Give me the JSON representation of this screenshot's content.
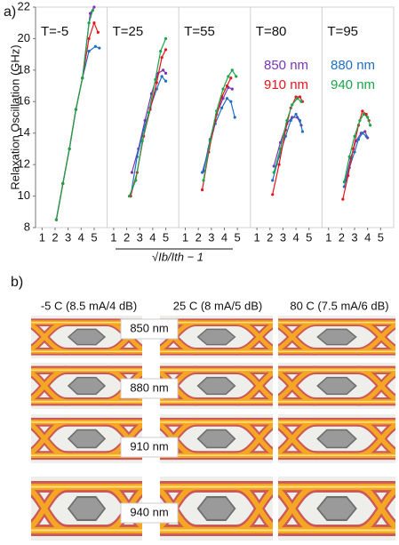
{
  "panel_labels": [
    "a)",
    "b)"
  ],
  "chart_data": {
    "type": "line",
    "ylabel": "Relaxation Oscillation (GHz)",
    "xlabel": "√Ib/Ith − 1",
    "ylim": [
      8,
      22
    ],
    "yticks": [
      8,
      10,
      12,
      14,
      16,
      18,
      20,
      22
    ],
    "xlim": [
      0.5,
      6
    ],
    "xticks": [
      1,
      2,
      3,
      4,
      5
    ],
    "series": [
      {
        "name": "850 nm",
        "color": "#7a35b0"
      },
      {
        "name": "880 nm",
        "color": "#1f6fc0"
      },
      {
        "name": "910 nm",
        "color": "#e8141c"
      },
      {
        "name": "940 nm",
        "color": "#1aa64a"
      }
    ],
    "panels": [
      {
        "title": "T=-5",
        "series": [
          {
            "x": [
              2.1,
              2.6,
              3.1,
              3.6,
              4.1,
              4.7,
              5.0
            ],
            "values": [
              8.5,
              10.8,
              13,
              15.5,
              17.5,
              21.6,
              22
            ]
          },
          {
            "x": [
              2.1,
              2.6,
              3.1,
              3.6,
              4.1,
              4.6,
              5.1,
              5.4
            ],
            "values": [
              8.5,
              10.8,
              13,
              15.5,
              17.5,
              19.2,
              19.5,
              19.4
            ]
          },
          {
            "x": [
              2.1,
              2.6,
              3.1,
              3.6,
              4.1,
              4.6,
              5.0,
              5.3
            ],
            "values": [
              8.5,
              10.8,
              13,
              15.5,
              17.5,
              20,
              21,
              20.4
            ]
          },
          {
            "x": [
              2.1,
              2.6,
              3.1,
              3.6,
              4.1,
              4.6,
              4.9
            ],
            "values": [
              8.5,
              10.8,
              13,
              15.5,
              17.5,
              21,
              21.8
            ]
          }
        ]
      },
      {
        "title": "T=25",
        "series": [
          {
            "x": [
              2.4,
              2.9,
              3.4,
              3.9,
              4.4,
              4.8,
              5.0
            ],
            "values": [
              11.5,
              13,
              14.8,
              16.5,
              17.8,
              18,
              17.8
            ]
          },
          {
            "x": [
              2.3,
              2.8,
              3.3,
              3.8,
              4.3,
              4.7,
              5.0
            ],
            "values": [
              10,
              12.5,
              14.2,
              15.6,
              16.8,
              17.6,
              17.3
            ]
          },
          {
            "x": [
              2.3,
              2.8,
              3.3,
              3.8,
              4.3,
              4.7,
              5.0
            ],
            "values": [
              10,
              11.5,
              13.8,
              15.5,
              17.2,
              18.8,
              19.3
            ]
          },
          {
            "x": [
              2.2,
              2.7,
              3.2,
              3.7,
              4.2,
              4.6,
              5.0
            ],
            "values": [
              10,
              11,
              13.5,
              15.3,
              17.4,
              19.2,
              20
            ]
          }
        ]
      },
      {
        "title": "T=55",
        "series": [
          {
            "x": [
              2.4,
              2.9,
              3.4,
              3.9,
              4.3,
              4.6
            ],
            "values": [
              11.6,
              13.6,
              15.2,
              16.2,
              16.9,
              16.8
            ]
          },
          {
            "x": [
              2.3,
              2.8,
              3.3,
              3.8,
              4.2,
              4.5,
              4.8
            ],
            "values": [
              11.5,
              13,
              14.6,
              15.6,
              16.2,
              16,
              15
            ]
          },
          {
            "x": [
              2.3,
              2.8,
              3.3,
              3.8,
              4.2,
              4.5
            ],
            "values": [
              10.4,
              12.8,
              14.8,
              16.3,
              17,
              17.5
            ]
          },
          {
            "x": [
              2.4,
              2.9,
              3.4,
              3.9,
              4.3,
              4.6,
              4.9
            ],
            "values": [
              11,
              13.5,
              15.4,
              16.8,
              17.6,
              18,
              17.6
            ]
          }
        ]
      },
      {
        "title": "T=80",
        "series": [
          {
            "x": [
              2.3,
              2.8,
              3.3,
              3.7,
              4.1,
              4.4
            ],
            "values": [
              11.9,
              13.4,
              14.6,
              15,
              15,
              14.5
            ]
          },
          {
            "x": [
              2.2,
              2.7,
              3.2,
              3.6,
              4.0,
              4.3,
              4.5
            ],
            "values": [
              11,
              12.5,
              13.8,
              14.8,
              15.2,
              14.8,
              14.1
            ]
          },
          {
            "x": [
              2.2,
              2.7,
              3.2,
              3.6,
              4.0,
              4.3,
              4.5
            ],
            "values": [
              10.1,
              12,
              14.2,
              15.6,
              16.3,
              16.3,
              16
            ]
          },
          {
            "x": [
              2.3,
              2.8,
              3.3,
              3.7,
              4.1,
              4.4
            ],
            "values": [
              11.5,
              13,
              14.8,
              15.8,
              16.2,
              16
            ]
          }
        ]
      },
      {
        "title": "T=95",
        "series": [
          {
            "x": [
              2.3,
              2.7,
              3.1,
              3.5,
              3.8,
              4.0
            ],
            "values": [
              11,
              12.4,
              13.5,
              14,
              14.1,
              13.7
            ]
          },
          {
            "x": [
              2.2,
              2.6,
              3.0,
              3.3,
              3.6,
              3.9
            ],
            "values": [
              10.6,
              11.8,
              12.8,
              13.6,
              14,
              13.8
            ]
          },
          {
            "x": [
              2.1,
              2.5,
              2.9,
              3.3,
              3.6,
              3.9,
              4.1
            ],
            "values": [
              9.8,
              11.3,
              13,
              14.5,
              15.4,
              15.2,
              14.8
            ]
          },
          {
            "x": [
              2.2,
              2.6,
              3.0,
              3.4,
              3.7,
              4.0,
              4.2
            ],
            "values": [
              10.9,
              12.5,
              13.8,
              14.8,
              15.2,
              15,
              14.5
            ]
          }
        ]
      }
    ]
  },
  "eye_diagrams": {
    "columns": [
      "-5 C (8.5 mA/4 dB)",
      "25 C (8 mA/5 dB)",
      "80 C (7.5 mA/6 dB)"
    ],
    "rows": [
      "850 nm",
      "880 nm",
      "910 nm",
      "940 nm"
    ]
  }
}
